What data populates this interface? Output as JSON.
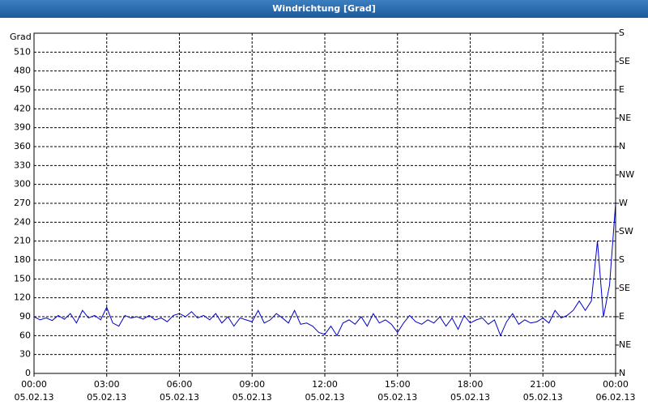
{
  "chart_data": {
    "type": "line",
    "title": "Windrichtung [Grad]",
    "y_label": "Grad",
    "x": [
      0,
      0.25,
      0.5,
      0.75,
      1,
      1.25,
      1.5,
      1.75,
      2,
      2.25,
      2.5,
      2.75,
      3,
      3.25,
      3.5,
      3.75,
      4,
      4.25,
      4.5,
      4.75,
      5,
      5.25,
      5.5,
      5.75,
      6,
      6.25,
      6.5,
      6.75,
      7,
      7.25,
      7.5,
      7.75,
      8,
      8.25,
      8.5,
      8.75,
      9,
      9.25,
      9.5,
      9.75,
      10,
      10.25,
      10.5,
      10.75,
      11,
      11.25,
      11.5,
      11.75,
      12,
      12.25,
      12.5,
      12.75,
      13,
      13.25,
      13.5,
      13.75,
      14,
      14.25,
      14.5,
      14.75,
      15,
      15.25,
      15.5,
      15.75,
      16,
      16.25,
      16.5,
      16.75,
      17,
      17.25,
      17.5,
      17.75,
      18,
      18.25,
      18.5,
      18.75,
      19,
      19.25,
      19.5,
      19.75,
      20,
      20.25,
      20.5,
      20.75,
      21,
      21.25,
      21.5,
      21.75,
      22,
      22.25,
      22.5,
      22.75,
      23,
      23.25,
      23.5,
      23.75,
      24
    ],
    "series": [
      {
        "name": "Windrichtung",
        "color": "#0000cc",
        "values": [
          90,
          85,
          88,
          84,
          92,
          86,
          95,
          80,
          100,
          88,
          92,
          85,
          105,
          80,
          75,
          92,
          88,
          90,
          86,
          92,
          85,
          88,
          82,
          92,
          95,
          90,
          98,
          88,
          92,
          85,
          95,
          80,
          90,
          75,
          88,
          85,
          82,
          100,
          80,
          85,
          95,
          88,
          80,
          100,
          78,
          80,
          75,
          65,
          62,
          75,
          60,
          80,
          85,
          78,
          90,
          75,
          95,
          80,
          85,
          78,
          65,
          80,
          92,
          82,
          78,
          85,
          80,
          90,
          75,
          88,
          70,
          92,
          80,
          85,
          88,
          78,
          85,
          60,
          82,
          95,
          78,
          85,
          80,
          82,
          88,
          80,
          100,
          88,
          92,
          100,
          115,
          100,
          115,
          210,
          90,
          140,
          270
        ]
      }
    ],
    "xlim": [
      0,
      24
    ],
    "xticks": [
      {
        "value": 0,
        "label": "00:00"
      },
      {
        "value": 3,
        "label": "03:00"
      },
      {
        "value": 6,
        "label": "06:00"
      },
      {
        "value": 9,
        "label": "09:00"
      },
      {
        "value": 12,
        "label": "12:00"
      },
      {
        "value": 15,
        "label": "15:00"
      },
      {
        "value": 18,
        "label": "18:00"
      },
      {
        "value": 21,
        "label": "21:00"
      },
      {
        "value": 24,
        "label": "00:00"
      }
    ],
    "xtick_dates": [
      "05.02.13",
      "05.02.13",
      "05.02.13",
      "05.02.13",
      "05.02.13",
      "05.02.13",
      "05.02.13",
      "05.02.13",
      "06.02.13"
    ],
    "ylim": [
      0,
      540
    ],
    "yticks": [
      0,
      30,
      60,
      90,
      120,
      150,
      180,
      210,
      240,
      270,
      300,
      330,
      360,
      390,
      420,
      450,
      480,
      510
    ],
    "y2lim": [
      0,
      540
    ],
    "y2ticks": [
      {
        "value": 0,
        "label": "N"
      },
      {
        "value": 45,
        "label": "NE"
      },
      {
        "value": 90,
        "label": "E"
      },
      {
        "value": 135,
        "label": "SE"
      },
      {
        "value": 180,
        "label": "S"
      },
      {
        "value": 225,
        "label": "SW"
      },
      {
        "value": 270,
        "label": "W"
      },
      {
        "value": 315,
        "label": "NW"
      },
      {
        "value": 360,
        "label": "N"
      },
      {
        "value": 405,
        "label": "NE"
      },
      {
        "value": 450,
        "label": "E"
      },
      {
        "value": 495,
        "label": "SE"
      },
      {
        "value": 540,
        "label": "S"
      }
    ],
    "grid": true
  }
}
